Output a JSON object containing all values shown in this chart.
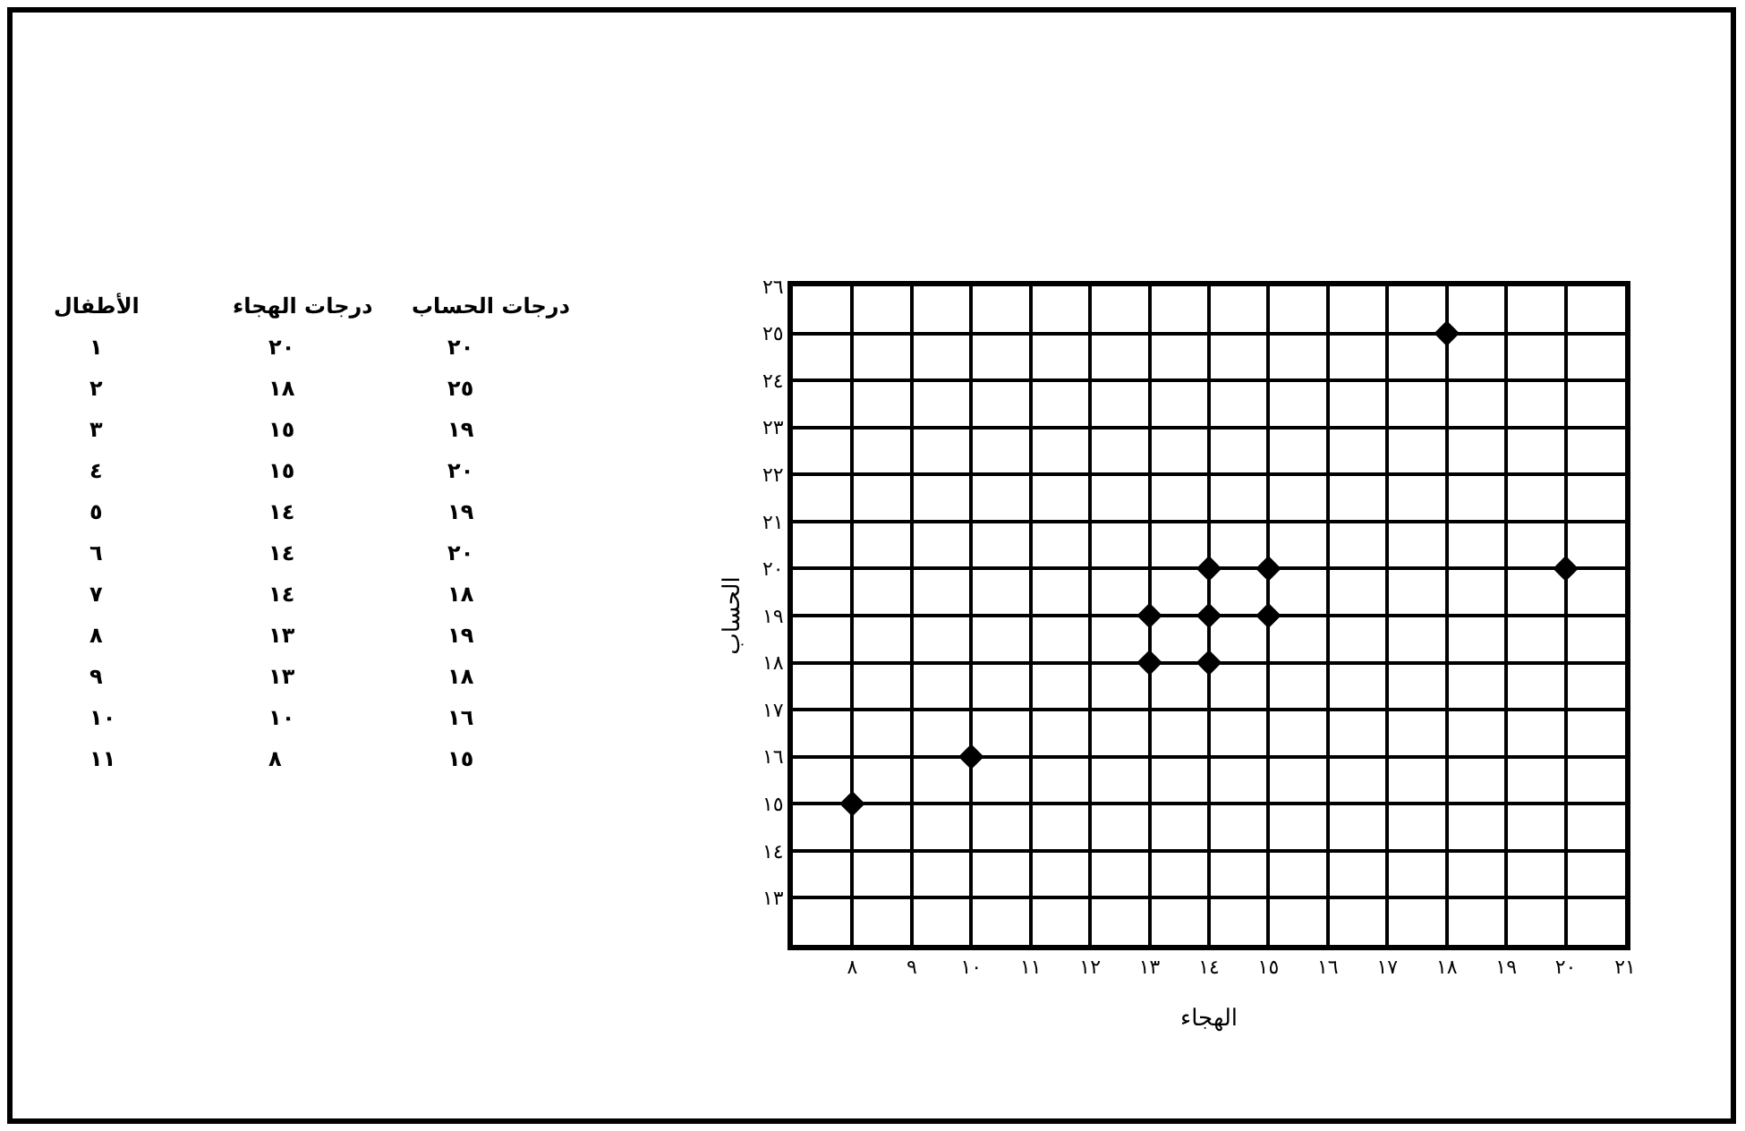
{
  "chart_data": [
    {
      "type": "other",
      "annotations": [
        "الأطفال\tدرجات الهجاء\tدرجات الحساب",
        "١\t٢٠\t٢٠",
        "٢\t١٨\t٢٥",
        "٣\t١٥\t١٩",
        "٤\t١٥\t٢٠",
        "٥\t١٤\t١٩",
        "٦\t١٤\t٢٠",
        "٧\t١٤\t١٨",
        "٨\t١٣\t١٩",
        "٩\t١٣\t١٨",
        "١٠\t١٠\t١٦",
        "١١\t٨\t١٥"
      ]
    },
    {
      "type": "scatter",
      "xlabel": "الهجاء",
      "ylabel": "الحساب",
      "marker": "diamond",
      "grid": true,
      "x": [
        20,
        18,
        15,
        15,
        14,
        14,
        14,
        13,
        13,
        10,
        8
      ],
      "series": [
        {
          "color": "#000000",
          "values": [
            20,
            25,
            19,
            20,
            19,
            20,
            18,
            19,
            18,
            16,
            15
          ]
        }
      ],
      "xlim": [
        7,
        21
      ],
      "xticks": [
        {
          "value": 8,
          "label": "٨"
        },
        {
          "value": 9,
          "label": "٩"
        },
        {
          "value": 10,
          "label": "١٠"
        },
        {
          "value": 11,
          "label": "١١"
        },
        {
          "value": 12,
          "label": "١٢"
        },
        {
          "value": 13,
          "label": "١٣"
        },
        {
          "value": 14,
          "label": "١٤"
        },
        {
          "value": 15,
          "label": "١٥"
        },
        {
          "value": 16,
          "label": "١٦"
        },
        {
          "value": 17,
          "label": "١٧"
        },
        {
          "value": 18,
          "label": "١٨"
        },
        {
          "value": 19,
          "label": "١٩"
        },
        {
          "value": 20,
          "label": "٢٠"
        },
        {
          "value": 21,
          "label": "٢١"
        }
      ],
      "ylim": [
        12,
        26
      ],
      "yticks": [
        {
          "value": 13,
          "label": "١٣"
        },
        {
          "value": 14,
          "label": "١٤"
        },
        {
          "value": 15,
          "label": "١٥"
        },
        {
          "value": 16,
          "label": "١٦"
        },
        {
          "value": 17,
          "label": "١٧"
        },
        {
          "value": 18,
          "label": "١٨"
        },
        {
          "value": 19,
          "label": "١٩"
        },
        {
          "value": 20,
          "label": "٢٠"
        },
        {
          "value": 21,
          "label": "٢١"
        },
        {
          "value": 22,
          "label": "٢٢"
        },
        {
          "value": 23,
          "label": "٢٣"
        },
        {
          "value": 24,
          "label": "٢٤"
        },
        {
          "value": 25,
          "label": "٢٥"
        },
        {
          "value": 26,
          "label": "٢٦"
        }
      ]
    }
  ]
}
